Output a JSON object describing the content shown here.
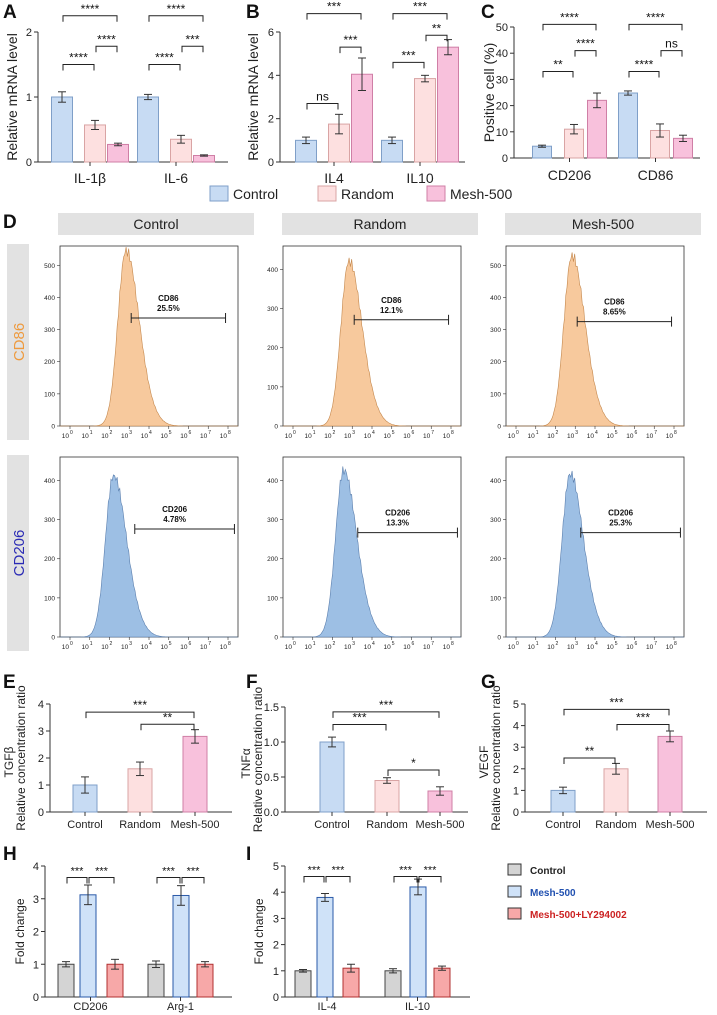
{
  "figure": {
    "panel_letters": [
      "A",
      "B",
      "C",
      "D",
      "E",
      "F",
      "G",
      "H",
      "I"
    ],
    "colors": {
      "control": "#c7dbf3",
      "control_edge": "#7f9fc8",
      "random": "#fde0e0",
      "random_edge": "#d9a4a4",
      "mesh": "#f8c1dc",
      "mesh_edge": "#cf7fa6",
      "orange_hist": "#f7c99d",
      "blue_hist": "#9dbfe4",
      "cd86_label": "#ee9a3e",
      "cd206_label": "#2b2bb5",
      "header_bg": "#e2e2e2",
      "side_bg": "#e2e2e2",
      "hi_control": "#d4d4d4",
      "hi_mesh": "#cfe2f8",
      "hi_ly": "#f7a8a8",
      "leg_mesh_text": "#2050b0",
      "leg_ly_text": "#cc2222"
    }
  },
  "legend_top": {
    "items": [
      "Control",
      "Random",
      "Mesh-500"
    ]
  },
  "flow": {
    "columns": [
      "Control",
      "Random",
      "Mesh-500"
    ],
    "rows": [
      "CD86",
      "CD206"
    ],
    "gates": [
      [
        {
          "label": "CD86",
          "value": "25.5%"
        },
        {
          "label": "CD86",
          "value": "12.1%"
        },
        {
          "label": "CD86",
          "value": "8.65%"
        }
      ],
      [
        {
          "label": "CD206",
          "value": "4.78%"
        },
        {
          "label": "CD206",
          "value": "13.3%"
        },
        {
          "label": "CD206",
          "value": "25.3%"
        }
      ]
    ],
    "y_ticks": [
      [
        [
          "0",
          "100",
          "200",
          "300",
          "400",
          "500"
        ],
        [
          "0",
          "100",
          "200",
          "300",
          "400"
        ],
        [
          "0",
          "100",
          "200",
          "300",
          "400",
          "500"
        ]
      ],
      [
        [
          "0",
          "100",
          "200",
          "300",
          "400"
        ],
        [
          "0",
          "100",
          "200",
          "300",
          "400"
        ],
        [
          "0",
          "100",
          "200",
          "300",
          "400"
        ]
      ]
    ],
    "x_exponents": [
      "0",
      "1",
      "2",
      "3",
      "4",
      "5",
      "6",
      "7",
      "8"
    ],
    "x_base": "10"
  },
  "chart_data": [
    {
      "panel": "A",
      "type": "bar",
      "title": "",
      "ylabel": "Relative mRNA level",
      "ylim": [
        0,
        2
      ],
      "yticks": [
        "0",
        "1",
        "2"
      ],
      "categories": [
        "IL-1β",
        "IL-6"
      ],
      "series": [
        {
          "name": "Control",
          "values": [
            1.0,
            1.0
          ],
          "errors": [
            0.08,
            0.04
          ]
        },
        {
          "name": "Random",
          "values": [
            0.57,
            0.35
          ],
          "errors": [
            0.07,
            0.06
          ]
        },
        {
          "name": "Mesh-500",
          "values": [
            0.27,
            0.1
          ],
          "errors": [
            0.02,
            0.01
          ]
        }
      ],
      "significance": [
        {
          "group": 0,
          "from": 0,
          "to": 1,
          "text": "****",
          "y": 1.5
        },
        {
          "group": 0,
          "from": 0,
          "to": 2,
          "text": "****",
          "y": 2.25
        },
        {
          "group": 0,
          "from": 1,
          "to": 2,
          "text": "****",
          "y": 1.78
        },
        {
          "group": 1,
          "from": 0,
          "to": 1,
          "text": "****",
          "y": 1.5
        },
        {
          "group": 1,
          "from": 0,
          "to": 2,
          "text": "****",
          "y": 2.25
        },
        {
          "group": 1,
          "from": 1,
          "to": 2,
          "text": "***",
          "y": 1.78
        }
      ]
    },
    {
      "panel": "B",
      "type": "bar",
      "title": "",
      "ylabel": "Relative mRNA level",
      "ylim": [
        0,
        6
      ],
      "yticks": [
        "0",
        "2",
        "4",
        "6"
      ],
      "categories": [
        "IL4",
        "IL10"
      ],
      "series": [
        {
          "name": "Control",
          "values": [
            1.0,
            1.0
          ],
          "errors": [
            0.15,
            0.15
          ]
        },
        {
          "name": "Random",
          "values": [
            1.75,
            3.85
          ],
          "errors": [
            0.45,
            0.15
          ]
        },
        {
          "name": "Mesh-500",
          "values": [
            4.05,
            5.3
          ],
          "errors": [
            0.75,
            0.35
          ]
        }
      ],
      "significance": [
        {
          "group": 0,
          "from": 0,
          "to": 1,
          "text": "ns",
          "y": 2.7
        },
        {
          "group": 0,
          "from": 0,
          "to": 2,
          "text": "***",
          "y": 6.85
        },
        {
          "group": 0,
          "from": 1,
          "to": 2,
          "text": "***",
          "y": 5.3
        },
        {
          "group": 1,
          "from": 0,
          "to": 1,
          "text": "***",
          "y": 4.6
        },
        {
          "group": 1,
          "from": 0,
          "to": 2,
          "text": "***",
          "y": 6.85
        },
        {
          "group": 1,
          "from": 1,
          "to": 2,
          "text": "**",
          "y": 5.85
        }
      ]
    },
    {
      "panel": "C",
      "type": "bar",
      "title": "",
      "ylabel": "Positive cell (%)",
      "ylim": [
        0,
        50
      ],
      "yticks": [
        "0",
        "10",
        "20",
        "30",
        "40",
        "50"
      ],
      "categories": [
        "CD206",
        "CD86"
      ],
      "series": [
        {
          "name": "Control",
          "values": [
            4.5,
            24.8
          ],
          "errors": [
            0.4,
            0.8
          ]
        },
        {
          "name": "Random",
          "values": [
            11,
            10.5
          ],
          "errors": [
            1.8,
            2.5
          ]
        },
        {
          "name": "Mesh-500",
          "values": [
            22,
            7.5
          ],
          "errors": [
            2.8,
            1.2
          ]
        }
      ],
      "significance": [
        {
          "group": 0,
          "from": 0,
          "to": 1,
          "text": "**",
          "y": 33
        },
        {
          "group": 0,
          "from": 0,
          "to": 2,
          "text": "****",
          "y": 51
        },
        {
          "group": 0,
          "from": 1,
          "to": 2,
          "text": "****",
          "y": 41
        },
        {
          "group": 1,
          "from": 0,
          "to": 1,
          "text": "****",
          "y": 33
        },
        {
          "group": 1,
          "from": 0,
          "to": 2,
          "text": "****",
          "y": 51
        },
        {
          "group": 1,
          "from": 1,
          "to": 2,
          "text": "ns",
          "y": 41
        }
      ]
    },
    {
      "panel": "E",
      "type": "bar",
      "title": "",
      "ylabel": "TGFβ",
      "ylabel2": "Relative concentration ratio",
      "ylim": [
        0,
        4
      ],
      "yticks": [
        "0",
        "1",
        "2",
        "3",
        "4"
      ],
      "categories": [
        "Control",
        "Random",
        "Mesh-500"
      ],
      "values": [
        1.0,
        1.6,
        2.8
      ],
      "errors": [
        0.3,
        0.25,
        0.25
      ],
      "significance": [
        {
          "from": 0,
          "to": 2,
          "text": "***",
          "y": 3.7
        },
        {
          "from": 1,
          "to": 2,
          "text": "**",
          "y": 3.25
        }
      ]
    },
    {
      "panel": "F",
      "type": "bar",
      "title": "",
      "ylabel": "TNFα",
      "ylabel2": "Relative concentration ratio",
      "ylim": [
        0,
        1.5
      ],
      "yticks": [
        "0.0",
        "0.5",
        "1.0",
        "1.5"
      ],
      "categories": [
        "Control",
        "Random",
        "Mesh-500"
      ],
      "values": [
        1.0,
        0.45,
        0.3
      ],
      "errors": [
        0.07,
        0.04,
        0.06
      ],
      "significance": [
        {
          "from": 0,
          "to": 1,
          "text": "***",
          "y": 1.25
        },
        {
          "from": 0,
          "to": 2,
          "text": "***",
          "y": 1.43
        },
        {
          "from": 1,
          "to": 2,
          "text": "*",
          "y": 0.6
        }
      ]
    },
    {
      "panel": "G",
      "type": "bar",
      "title": "",
      "ylabel": "VEGF",
      "ylabel2": "Relative concentration ratio",
      "ylim": [
        0,
        5
      ],
      "yticks": [
        "0",
        "1",
        "2",
        "3",
        "4",
        "5"
      ],
      "categories": [
        "Control",
        "Random",
        "Mesh-500"
      ],
      "values": [
        1.0,
        2.0,
        3.5
      ],
      "errors": [
        0.15,
        0.25,
        0.25
      ],
      "significance": [
        {
          "from": 0,
          "to": 1,
          "text": "**",
          "y": 2.5
        },
        {
          "from": 0,
          "to": 2,
          "text": "***",
          "y": 4.75
        },
        {
          "from": 1,
          "to": 2,
          "text": "***",
          "y": 4.05
        }
      ]
    },
    {
      "panel": "H",
      "type": "bar",
      "title": "",
      "ylabel": "Fold change",
      "ylim": [
        0,
        4
      ],
      "yticks": [
        "0",
        "1",
        "2",
        "3",
        "4"
      ],
      "categories": [
        "CD206",
        "Arg-1"
      ],
      "series": [
        {
          "name": "Control",
          "values": [
            1.0,
            1.0
          ],
          "errors": [
            0.08,
            0.1
          ]
        },
        {
          "name": "Mesh-500",
          "values": [
            3.12,
            3.1
          ],
          "errors": [
            0.3,
            0.3
          ]
        },
        {
          "name": "Mesh-500+LY294002",
          "values": [
            1.0,
            1.0
          ],
          "errors": [
            0.15,
            0.08
          ]
        }
      ],
      "significance": [
        {
          "group": 0,
          "from": 0,
          "to": 1,
          "text": "***",
          "y": 3.65
        },
        {
          "group": 0,
          "from": 1,
          "to": 2,
          "text": "***",
          "y": 3.65
        },
        {
          "group": 1,
          "from": 0,
          "to": 1,
          "text": "***",
          "y": 3.65
        },
        {
          "group": 1,
          "from": 1,
          "to": 2,
          "text": "***",
          "y": 3.65
        }
      ]
    },
    {
      "panel": "I",
      "type": "bar",
      "title": "",
      "ylabel": "Fold change",
      "ylim": [
        0,
        5
      ],
      "yticks": [
        "0",
        "1",
        "2",
        "3",
        "4",
        "5"
      ],
      "categories": [
        "IL-4",
        "IL-10"
      ],
      "series": [
        {
          "name": "Control",
          "values": [
            1.0,
            1.0
          ],
          "errors": [
            0.05,
            0.08
          ]
        },
        {
          "name": "Mesh-500",
          "values": [
            3.8,
            4.2
          ],
          "errors": [
            0.15,
            0.3
          ]
        },
        {
          "name": "Mesh-500+LY294002",
          "values": [
            1.1,
            1.1
          ],
          "errors": [
            0.15,
            0.08
          ]
        }
      ],
      "significance": [
        {
          "group": 0,
          "from": 0,
          "to": 1,
          "text": "***",
          "y": 4.6
        },
        {
          "group": 0,
          "from": 1,
          "to": 2,
          "text": "***",
          "y": 4.6
        },
        {
          "group": 1,
          "from": 0,
          "to": 1,
          "text": "***",
          "y": 4.6
        },
        {
          "group": 1,
          "from": 1,
          "to": 2,
          "text": "***",
          "y": 4.6
        }
      ]
    }
  ],
  "legend_hi": {
    "items": [
      "Control",
      "Mesh-500",
      "Mesh-500+LY294002"
    ]
  }
}
